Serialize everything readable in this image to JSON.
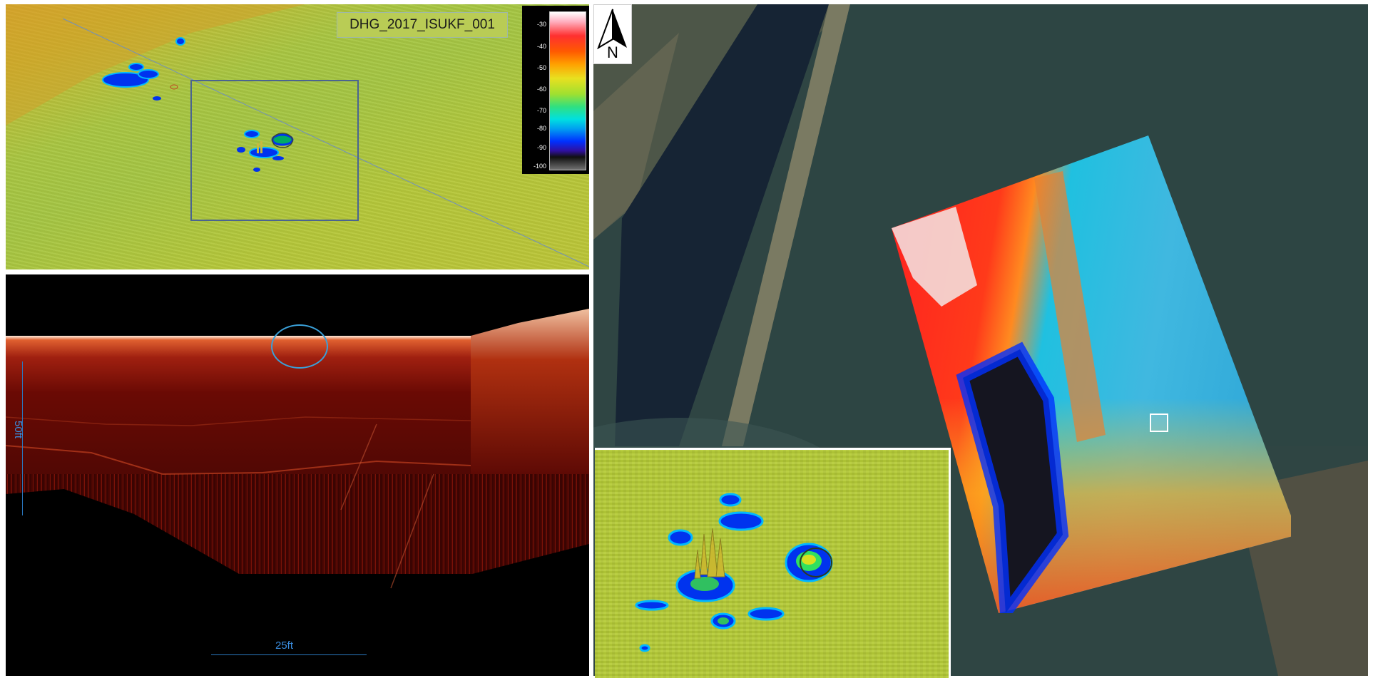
{
  "survey_title": "DHG_2017_ISUKF_001",
  "colorbar": {
    "labels": [
      "-30",
      "-40",
      "-50",
      "-60",
      "-70",
      "-80",
      "-90",
      "-100"
    ],
    "colors": [
      "#ffffff",
      "#ff3030",
      "#ffa000",
      "#a0e030",
      "#00e0e0",
      "#0030ff",
      "#101010"
    ]
  },
  "sonar": {
    "vertical_scale_label": "50ft",
    "horizontal_scale_label": "25ft"
  },
  "map": {
    "north_label": "N"
  },
  "icons": [
    "north-arrow-icon",
    "selection-marker-icon"
  ]
}
